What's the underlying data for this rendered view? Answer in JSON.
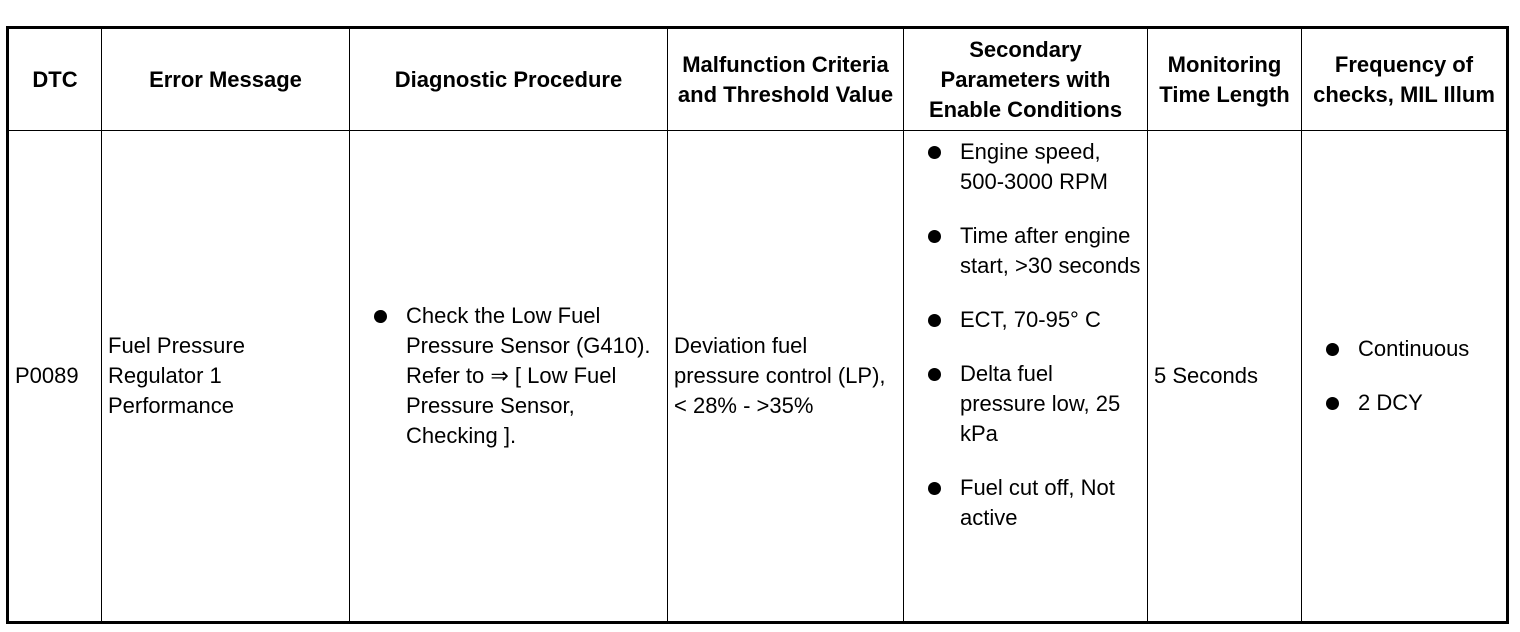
{
  "table": {
    "headers": {
      "dtc": "DTC",
      "error_message": "Error Message",
      "diagnostic_procedure": "Diagnostic Procedure",
      "malfunction_criteria": "Malfunction Criteria and Threshold Value",
      "secondary_parameters": "Secondary Parameters with Enable Conditions",
      "monitoring_time": "Monitoring Time Length",
      "frequency": "Frequency of checks, MIL Illum"
    },
    "row": {
      "dtc": "P0089",
      "error_message": "Fuel Pressure Regulator 1 Performance",
      "diagnostic_procedure": [
        "Check the Low Fuel Pressure Sensor (G410). Refer to ⇒ [ Low Fuel Pressure Sensor, Checking ]."
      ],
      "malfunction_criteria": "Deviation fuel pressure control (LP), < 28% - >35%",
      "secondary_parameters": [
        "Engine speed, 500-3000 RPM",
        "Time after engine start, >30 seconds",
        "ECT, 70-95° C",
        "Delta fuel pressure low, 25 kPa",
        "Fuel cut off, Not active"
      ],
      "monitoring_time": "5 Seconds",
      "frequency": [
        "Continuous",
        "2 DCY"
      ]
    }
  }
}
